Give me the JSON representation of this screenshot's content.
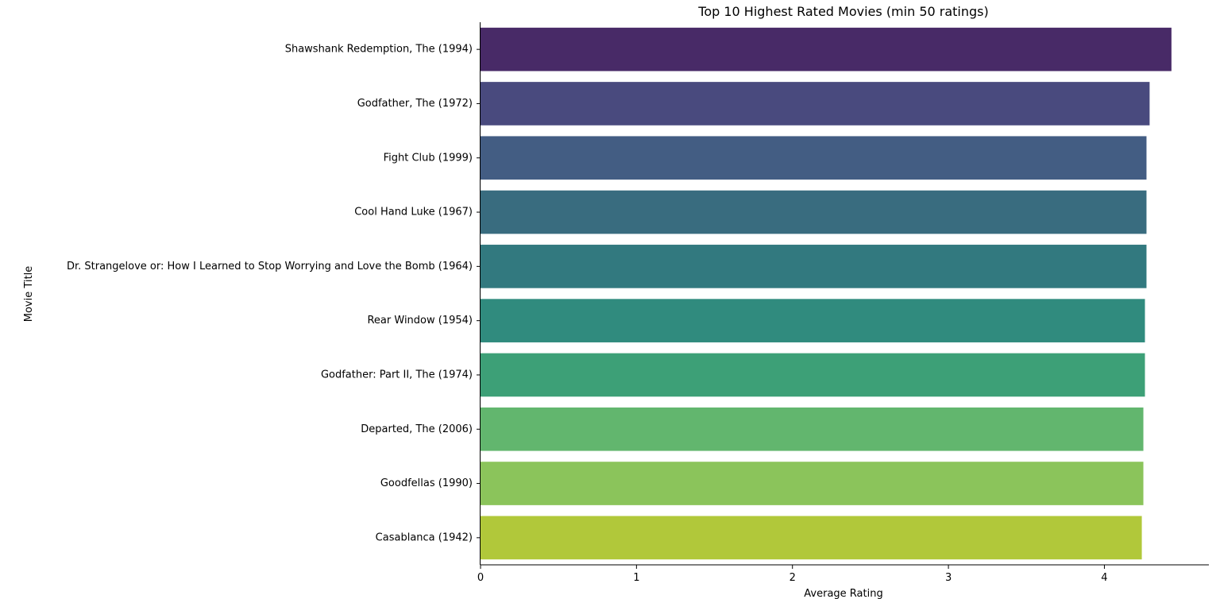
{
  "chart_data": {
    "type": "bar",
    "orientation": "horizontal",
    "title": "Top 10 Highest Rated Movies (min 50 ratings)",
    "xlabel": "Average Rating",
    "ylabel": "Movie Title",
    "xlim": [
      0,
      4.67
    ],
    "xticks": [
      "0",
      "1",
      "2",
      "3",
      "4"
    ],
    "grid": false,
    "categories": [
      "Shawshank Redemption, The (1994)",
      "Godfather, The (1972)",
      "Fight Club (1999)",
      "Cool Hand Luke (1967)",
      "Dr. Strangelove or: How I Learned to Stop Worrying and Love the Bomb (1964)",
      "Rear Window (1954)",
      "Godfather: Part II, The (1974)",
      "Departed, The (2006)",
      "Goodfellas (1990)",
      "Casablanca (1942)"
    ],
    "values": [
      4.43,
      4.29,
      4.27,
      4.27,
      4.27,
      4.26,
      4.26,
      4.25,
      4.25,
      4.24
    ],
    "colors": [
      "#482A67",
      "#494A7E",
      "#435D83",
      "#396C7F",
      "#32797F",
      "#308B7E",
      "#3DA077",
      "#62B66E",
      "#8BC45B",
      "#B1C83A"
    ]
  }
}
